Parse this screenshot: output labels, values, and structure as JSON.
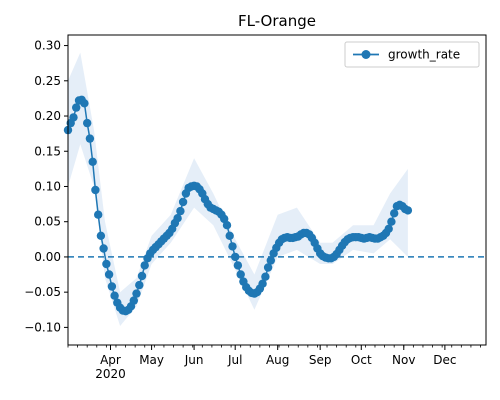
{
  "chart_data": {
    "type": "line",
    "title": "FL-Orange",
    "xlabel": "",
    "ylabel": "",
    "x_range": [
      "2020-03-01",
      "2020-12-31"
    ],
    "ylim": [
      -0.125,
      0.315
    ],
    "y_ticks": [
      -0.1,
      -0.05,
      0.0,
      0.05,
      0.1,
      0.15,
      0.2,
      0.25,
      0.3
    ],
    "y_tick_labels": [
      "−0.10",
      "−0.05",
      "0.00",
      "0.05",
      "0.10",
      "0.15",
      "0.20",
      "0.25",
      "0.30"
    ],
    "x_major_ticks": [
      {
        "date": "2020-04-01",
        "label": "Apr",
        "sublabel": "2020"
      },
      {
        "date": "2020-05-01",
        "label": "May",
        "sublabel": ""
      },
      {
        "date": "2020-06-01",
        "label": "Jun",
        "sublabel": ""
      },
      {
        "date": "2020-07-01",
        "label": "Jul",
        "sublabel": ""
      },
      {
        "date": "2020-08-01",
        "label": "Aug",
        "sublabel": ""
      },
      {
        "date": "2020-09-01",
        "label": "Sep",
        "sublabel": ""
      },
      {
        "date": "2020-10-01",
        "label": "Oct",
        "sublabel": ""
      },
      {
        "date": "2020-11-01",
        "label": "Nov",
        "sublabel": ""
      },
      {
        "date": "2020-12-01",
        "label": "Dec",
        "sublabel": ""
      }
    ],
    "legend": {
      "position": "top-right",
      "entries": [
        "growth_rate"
      ]
    },
    "grid": false,
    "reference_line": {
      "y": 0.0,
      "style": "dashed",
      "color": "#1f77b4"
    },
    "colors": {
      "series": "#1f77b4",
      "band": "#dce8f5"
    },
    "series": [
      {
        "name": "growth_rate",
        "points": [
          [
            "2020-03-01",
            0.18
          ],
          [
            "2020-03-03",
            0.19
          ],
          [
            "2020-03-05",
            0.198
          ],
          [
            "2020-03-07",
            0.212
          ],
          [
            "2020-03-09",
            0.222
          ],
          [
            "2020-03-11",
            0.223
          ],
          [
            "2020-03-13",
            0.218
          ],
          [
            "2020-03-15",
            0.19
          ],
          [
            "2020-03-17",
            0.168
          ],
          [
            "2020-03-19",
            0.135
          ],
          [
            "2020-03-21",
            0.095
          ],
          [
            "2020-03-23",
            0.06
          ],
          [
            "2020-03-25",
            0.03
          ],
          [
            "2020-03-27",
            0.012
          ],
          [
            "2020-03-29",
            -0.01
          ],
          [
            "2020-03-31",
            -0.025
          ],
          [
            "2020-04-02",
            -0.042
          ],
          [
            "2020-04-04",
            -0.055
          ],
          [
            "2020-04-06",
            -0.065
          ],
          [
            "2020-04-08",
            -0.072
          ],
          [
            "2020-04-10",
            -0.076
          ],
          [
            "2020-04-12",
            -0.077
          ],
          [
            "2020-04-14",
            -0.075
          ],
          [
            "2020-04-16",
            -0.07
          ],
          [
            "2020-04-18",
            -0.062
          ],
          [
            "2020-04-20",
            -0.052
          ],
          [
            "2020-04-22",
            -0.04
          ],
          [
            "2020-04-24",
            -0.027
          ],
          [
            "2020-04-26",
            -0.012
          ],
          [
            "2020-04-28",
            -0.002
          ],
          [
            "2020-04-30",
            0.005
          ],
          [
            "2020-05-02",
            0.01
          ],
          [
            "2020-05-04",
            0.014
          ],
          [
            "2020-05-06",
            0.018
          ],
          [
            "2020-05-08",
            0.022
          ],
          [
            "2020-05-10",
            0.026
          ],
          [
            "2020-05-12",
            0.03
          ],
          [
            "2020-05-14",
            0.034
          ],
          [
            "2020-05-16",
            0.04
          ],
          [
            "2020-05-18",
            0.048
          ],
          [
            "2020-05-20",
            0.055
          ],
          [
            "2020-05-22",
            0.065
          ],
          [
            "2020-05-24",
            0.078
          ],
          [
            "2020-05-26",
            0.09
          ],
          [
            "2020-05-28",
            0.098
          ],
          [
            "2020-05-30",
            0.1
          ],
          [
            "2020-06-01",
            0.101
          ],
          [
            "2020-06-03",
            0.1
          ],
          [
            "2020-06-05",
            0.096
          ],
          [
            "2020-06-07",
            0.09
          ],
          [
            "2020-06-09",
            0.082
          ],
          [
            "2020-06-11",
            0.075
          ],
          [
            "2020-06-13",
            0.07
          ],
          [
            "2020-06-15",
            0.068
          ],
          [
            "2020-06-17",
            0.066
          ],
          [
            "2020-06-19",
            0.064
          ],
          [
            "2020-06-21",
            0.06
          ],
          [
            "2020-06-23",
            0.054
          ],
          [
            "2020-06-25",
            0.045
          ],
          [
            "2020-06-27",
            0.03
          ],
          [
            "2020-06-29",
            0.015
          ],
          [
            "2020-07-01",
            0.0
          ],
          [
            "2020-07-03",
            -0.012
          ],
          [
            "2020-07-05",
            -0.025
          ],
          [
            "2020-07-07",
            -0.035
          ],
          [
            "2020-07-09",
            -0.043
          ],
          [
            "2020-07-11",
            -0.048
          ],
          [
            "2020-07-13",
            -0.051
          ],
          [
            "2020-07-15",
            -0.052
          ],
          [
            "2020-07-17",
            -0.05
          ],
          [
            "2020-07-19",
            -0.045
          ],
          [
            "2020-07-21",
            -0.038
          ],
          [
            "2020-07-23",
            -0.028
          ],
          [
            "2020-07-25",
            -0.015
          ],
          [
            "2020-07-27",
            -0.005
          ],
          [
            "2020-07-29",
            0.005
          ],
          [
            "2020-07-31",
            0.013
          ],
          [
            "2020-08-02",
            0.02
          ],
          [
            "2020-08-04",
            0.025
          ],
          [
            "2020-08-06",
            0.027
          ],
          [
            "2020-08-08",
            0.028
          ],
          [
            "2020-08-10",
            0.027
          ],
          [
            "2020-08-12",
            0.027
          ],
          [
            "2020-08-14",
            0.028
          ],
          [
            "2020-08-16",
            0.029
          ],
          [
            "2020-08-18",
            0.032
          ],
          [
            "2020-08-20",
            0.034
          ],
          [
            "2020-08-22",
            0.034
          ],
          [
            "2020-08-24",
            0.032
          ],
          [
            "2020-08-26",
            0.027
          ],
          [
            "2020-08-28",
            0.02
          ],
          [
            "2020-08-30",
            0.012
          ],
          [
            "2020-09-01",
            0.005
          ],
          [
            "2020-09-03",
            0.001
          ],
          [
            "2020-09-05",
            -0.001
          ],
          [
            "2020-09-07",
            -0.002
          ],
          [
            "2020-09-09",
            -0.002
          ],
          [
            "2020-09-11",
            0.0
          ],
          [
            "2020-09-13",
            0.004
          ],
          [
            "2020-09-15",
            0.01
          ],
          [
            "2020-09-17",
            0.016
          ],
          [
            "2020-09-19",
            0.021
          ],
          [
            "2020-09-21",
            0.025
          ],
          [
            "2020-09-23",
            0.027
          ],
          [
            "2020-09-25",
            0.028
          ],
          [
            "2020-09-27",
            0.028
          ],
          [
            "2020-09-29",
            0.028
          ],
          [
            "2020-10-01",
            0.027
          ],
          [
            "2020-10-03",
            0.026
          ],
          [
            "2020-10-05",
            0.027
          ],
          [
            "2020-10-07",
            0.028
          ],
          [
            "2020-10-09",
            0.027
          ],
          [
            "2020-10-11",
            0.026
          ],
          [
            "2020-10-13",
            0.026
          ],
          [
            "2020-10-15",
            0.028
          ],
          [
            "2020-10-17",
            0.03
          ],
          [
            "2020-10-19",
            0.034
          ],
          [
            "2020-10-21",
            0.04
          ],
          [
            "2020-10-23",
            0.05
          ],
          [
            "2020-10-25",
            0.062
          ],
          [
            "2020-10-27",
            0.072
          ],
          [
            "2020-10-29",
            0.074
          ],
          [
            "2020-10-31",
            0.072
          ],
          [
            "2020-11-02",
            0.068
          ],
          [
            "2020-11-04",
            0.066
          ]
        ],
        "band_lower": [
          [
            "2020-03-01",
            0.1
          ],
          [
            "2020-03-10",
            0.16
          ],
          [
            "2020-03-20",
            0.1
          ],
          [
            "2020-03-28",
            -0.03
          ],
          [
            "2020-04-08",
            -0.098
          ],
          [
            "2020-04-20",
            -0.07
          ],
          [
            "2020-05-01",
            -0.01
          ],
          [
            "2020-05-15",
            0.02
          ],
          [
            "2020-06-01",
            0.07
          ],
          [
            "2020-06-15",
            0.045
          ],
          [
            "2020-07-01",
            -0.018
          ],
          [
            "2020-07-15",
            -0.075
          ],
          [
            "2020-08-01",
            0.0
          ],
          [
            "2020-08-15",
            0.01
          ],
          [
            "2020-09-01",
            -0.01
          ],
          [
            "2020-09-10",
            -0.01
          ],
          [
            "2020-09-25",
            0.01
          ],
          [
            "2020-10-10",
            0.005
          ],
          [
            "2020-10-22",
            0.025
          ],
          [
            "2020-11-04",
            0.0
          ]
        ],
        "band_upper": [
          [
            "2020-03-01",
            0.25
          ],
          [
            "2020-03-10",
            0.29
          ],
          [
            "2020-03-20",
            0.18
          ],
          [
            "2020-03-28",
            0.05
          ],
          [
            "2020-04-08",
            -0.05
          ],
          [
            "2020-04-20",
            -0.03
          ],
          [
            "2020-05-01",
            0.03
          ],
          [
            "2020-05-15",
            0.06
          ],
          [
            "2020-06-01",
            0.14
          ],
          [
            "2020-06-15",
            0.09
          ],
          [
            "2020-07-01",
            0.025
          ],
          [
            "2020-07-15",
            -0.025
          ],
          [
            "2020-08-01",
            0.06
          ],
          [
            "2020-08-15",
            0.07
          ],
          [
            "2020-09-01",
            0.02
          ],
          [
            "2020-09-10",
            0.02
          ],
          [
            "2020-09-25",
            0.045
          ],
          [
            "2020-10-10",
            0.045
          ],
          [
            "2020-10-22",
            0.09
          ],
          [
            "2020-11-04",
            0.125
          ]
        ]
      }
    ]
  }
}
